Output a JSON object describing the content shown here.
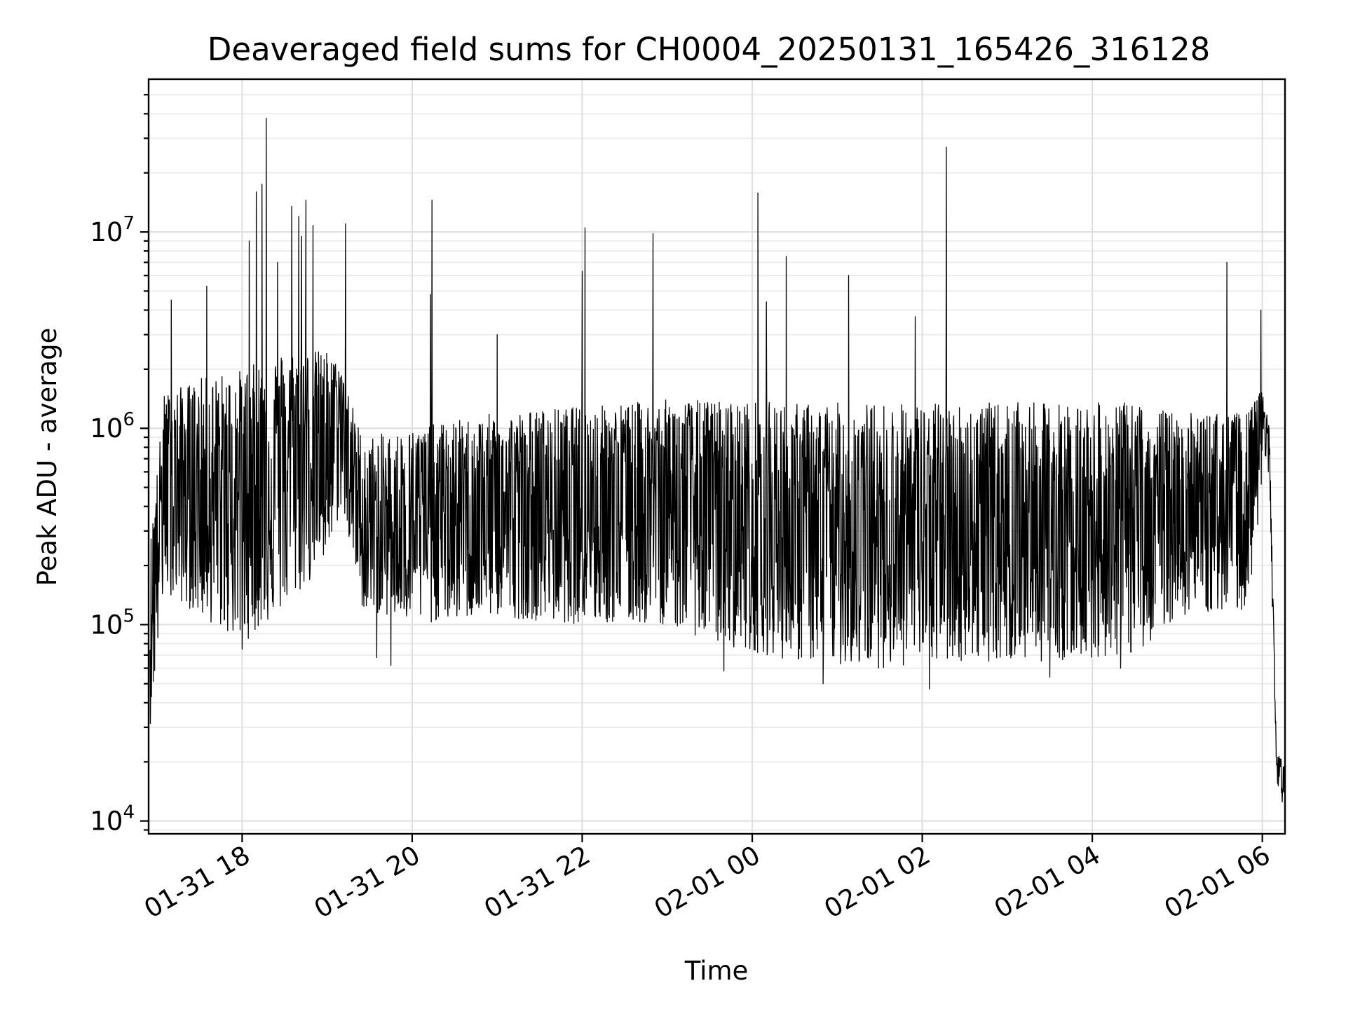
{
  "chart_data": {
    "type": "line",
    "title": "Deaveraged field sums for CH0004_20250131_165426_316128",
    "xlabel": "Time",
    "ylabel": "Peak ADU - average",
    "x_axis": {
      "kind": "datetime",
      "range": [
        "2025-01-31 16:54",
        "2025-02-01 06:16"
      ],
      "ticks": [
        "2025-01-31 18:00",
        "2025-01-31 20:00",
        "2025-01-31 22:00",
        "2025-02-01 00:00",
        "2025-02-01 02:00",
        "2025-02-01 04:00",
        "2025-02-01 06:00"
      ],
      "tick_labels": [
        "01-31 18",
        "01-31 20",
        "01-31 22",
        "02-01 00",
        "02-01 02",
        "02-01 04",
        "02-01 06"
      ],
      "tick_label_rotation": 30
    },
    "y_axis": {
      "scale": "log",
      "range": [
        8600,
        60000000
      ],
      "ticks": [
        10000,
        100000,
        1000000,
        10000000
      ],
      "tick_labels": [
        {
          "base": "10",
          "exp": "4"
        },
        {
          "base": "10",
          "exp": "5"
        },
        {
          "base": "10",
          "exp": "6"
        },
        {
          "base": "10",
          "exp": "7"
        }
      ]
    },
    "grid": true,
    "legend": "none",
    "series": [
      {
        "color": "#000000",
        "envelope": [
          {
            "x": "2025-01-31 16:55",
            "low": 30000,
            "typical": 150000,
            "high": 250000
          },
          {
            "x": "2025-01-31 17:05",
            "low": 150000,
            "typical": 600000,
            "high": 1500000
          },
          {
            "x": "2025-01-31 17:30",
            "low": 110000,
            "typical": 450000,
            "high": 1800000
          },
          {
            "x": "2025-01-31 18:00",
            "low": 80000,
            "typical": 500000,
            "high": 2000000
          },
          {
            "x": "2025-01-31 18:30",
            "low": 120000,
            "typical": 700000,
            "high": 2500000
          },
          {
            "x": "2025-01-31 19:00",
            "low": 200000,
            "typical": 900000,
            "high": 2500000
          },
          {
            "x": "2025-01-31 19:10",
            "low": 400000,
            "typical": 1400000,
            "high": 2000000
          },
          {
            "x": "2025-01-31 19:25",
            "low": 120000,
            "typical": 300000,
            "high": 900000
          },
          {
            "x": "2025-01-31 20:00",
            "low": 100000,
            "typical": 350000,
            "high": 1000000
          },
          {
            "x": "2025-01-31 21:00",
            "low": 110000,
            "typical": 380000,
            "high": 1200000
          },
          {
            "x": "2025-01-31 22:00",
            "low": 100000,
            "typical": 400000,
            "high": 1300000
          },
          {
            "x": "2025-01-31 23:00",
            "low": 100000,
            "typical": 450000,
            "high": 1400000
          },
          {
            "x": "2025-01-31 23:35",
            "low": 80000,
            "typical": 400000,
            "high": 1400000
          },
          {
            "x": "2025-02-01 00:30",
            "low": 65000,
            "typical": 300000,
            "high": 1350000
          },
          {
            "x": "2025-02-01 01:30",
            "low": 60000,
            "typical": 300000,
            "high": 1350000
          },
          {
            "x": "2025-02-01 02:30",
            "low": 65000,
            "typical": 320000,
            "high": 1350000
          },
          {
            "x": "2025-02-01 03:30",
            "low": 65000,
            "typical": 320000,
            "high": 1350000
          },
          {
            "x": "2025-02-01 04:30",
            "low": 70000,
            "typical": 330000,
            "high": 1350000
          },
          {
            "x": "2025-02-01 05:00",
            "low": 110000,
            "typical": 400000,
            "high": 1200000
          },
          {
            "x": "2025-02-01 05:50",
            "low": 120000,
            "typical": 400000,
            "high": 1200000
          },
          {
            "x": "2025-02-01 06:00",
            "low": 500000,
            "typical": 1200000,
            "high": 1600000
          },
          {
            "x": "2025-02-01 06:05",
            "low": 500000,
            "typical": 800000,
            "high": 1000000
          },
          {
            "x": "2025-02-01 06:10",
            "low": 15000,
            "typical": 20000,
            "high": 22000
          },
          {
            "x": "2025-02-01 06:16",
            "low": 13000,
            "typical": 17000,
            "high": 20000
          }
        ],
        "spikes": [
          {
            "x": "2025-01-31 17:10",
            "y": 4500000
          },
          {
            "x": "2025-01-31 17:35",
            "y": 5300000
          },
          {
            "x": "2025-01-31 18:05",
            "y": 9000000
          },
          {
            "x": "2025-01-31 18:10",
            "y": 16000000
          },
          {
            "x": "2025-01-31 18:14",
            "y": 17500000
          },
          {
            "x": "2025-01-31 18:17",
            "y": 38000000
          },
          {
            "x": "2025-01-31 18:25",
            "y": 7000000
          },
          {
            "x": "2025-01-31 18:35",
            "y": 13500000
          },
          {
            "x": "2025-01-31 18:40",
            "y": 12000000
          },
          {
            "x": "2025-01-31 18:42",
            "y": 9500000
          },
          {
            "x": "2025-01-31 18:45",
            "y": 14500000
          },
          {
            "x": "2025-01-31 18:50",
            "y": 10800000
          },
          {
            "x": "2025-01-31 19:13",
            "y": 11000000
          },
          {
            "x": "2025-01-31 20:13",
            "y": 4800000
          },
          {
            "x": "2025-01-31 20:14",
            "y": 14500000
          },
          {
            "x": "2025-01-31 21:00",
            "y": 3000000
          },
          {
            "x": "2025-01-31 22:00",
            "y": 6300000
          },
          {
            "x": "2025-01-31 22:02",
            "y": 10500000
          },
          {
            "x": "2025-01-31 22:50",
            "y": 9800000
          },
          {
            "x": "2025-02-01 00:04",
            "y": 15800000
          },
          {
            "x": "2025-02-01 00:10",
            "y": 4400000
          },
          {
            "x": "2025-02-01 00:24",
            "y": 7500000
          },
          {
            "x": "2025-02-01 01:08",
            "y": 6000000
          },
          {
            "x": "2025-02-01 01:55",
            "y": 3700000
          },
          {
            "x": "2025-02-01 02:17",
            "y": 27000000
          },
          {
            "x": "2025-02-01 05:35",
            "y": 7000000
          },
          {
            "x": "2025-02-01 05:59",
            "y": 4000000
          }
        ],
        "dips": [
          {
            "x": "2025-01-31 18:00",
            "y": 75000
          },
          {
            "x": "2025-01-31 19:35",
            "y": 68000
          },
          {
            "x": "2025-01-31 19:45",
            "y": 62000
          },
          {
            "x": "2025-01-31 23:40",
            "y": 58000
          },
          {
            "x": "2025-02-01 00:50",
            "y": 50000
          },
          {
            "x": "2025-02-01 02:05",
            "y": 47000
          },
          {
            "x": "2025-02-01 03:30",
            "y": 54000
          },
          {
            "x": "2025-02-01 04:20",
            "y": 60000
          },
          {
            "x": "2025-02-01 06:14",
            "y": 12500
          }
        ]
      }
    ]
  }
}
